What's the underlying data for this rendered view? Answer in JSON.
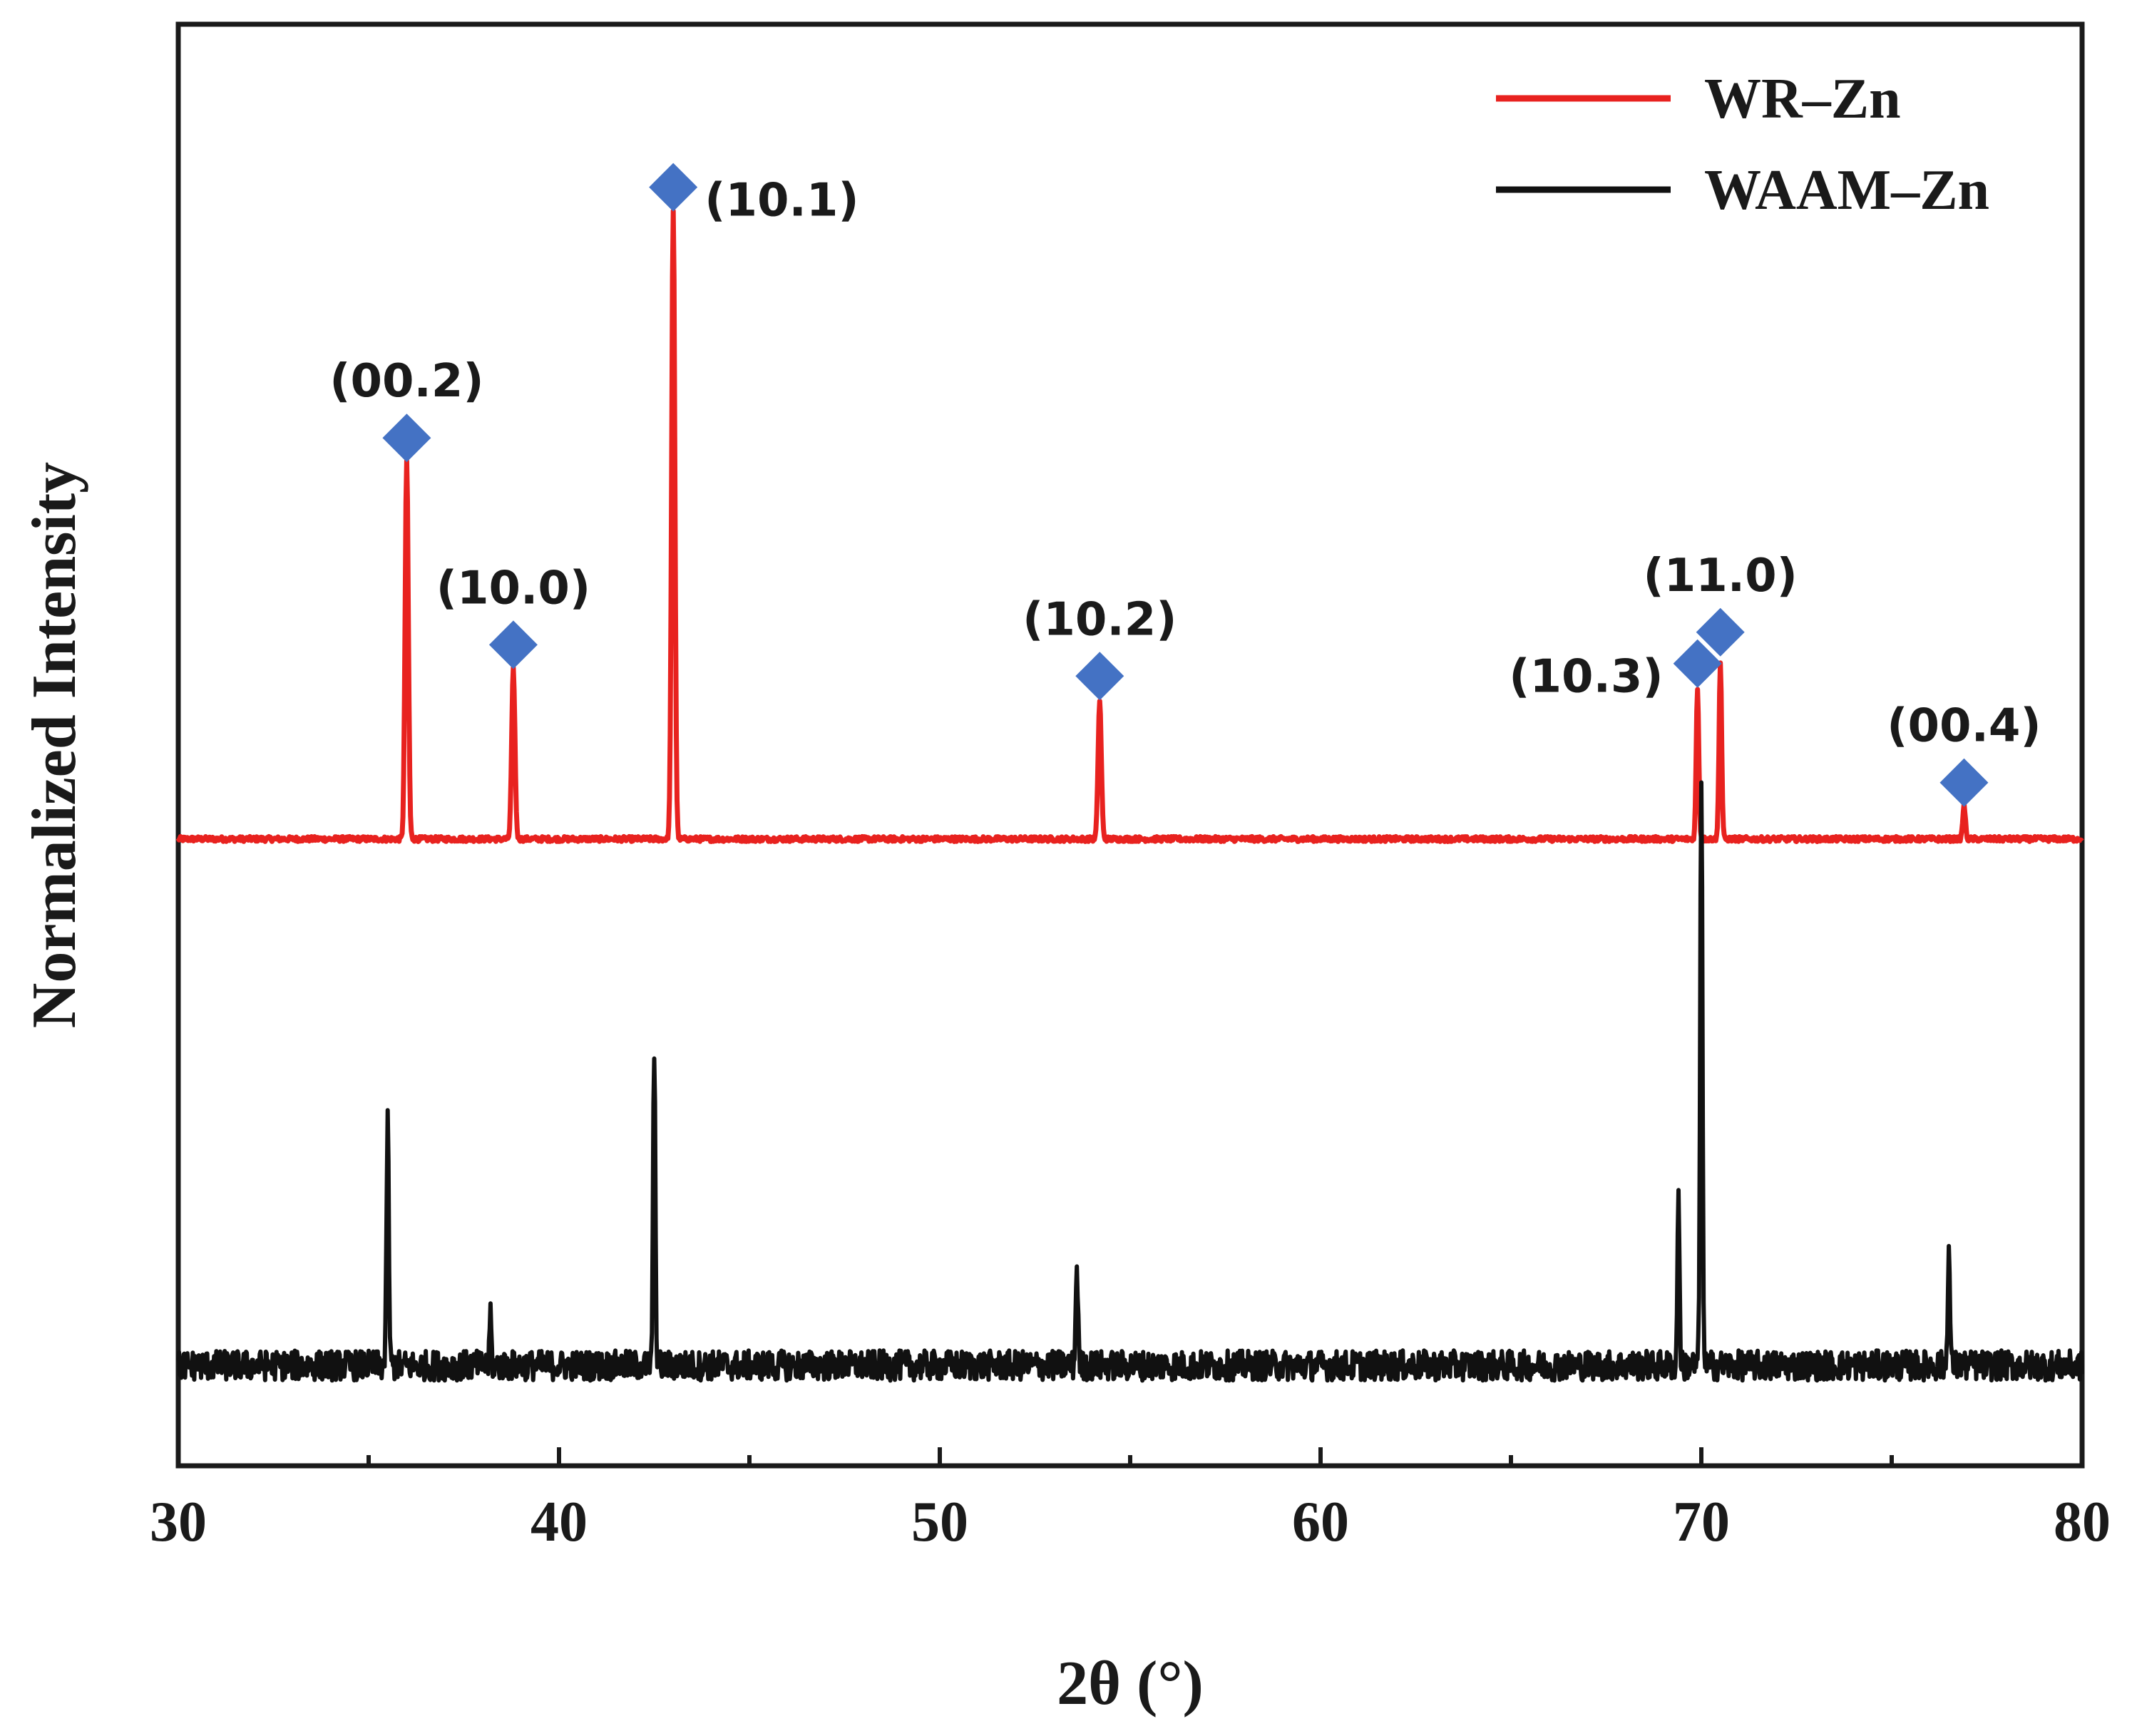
{
  "chart_data": {
    "type": "line",
    "title": "",
    "xlabel": "2θ (°)",
    "ylabel": "Normalized Intensity",
    "xlim": [
      30,
      80
    ],
    "ylim": [
      0,
      1.15
    ],
    "x_ticks": [
      30,
      40,
      50,
      60,
      70,
      80
    ],
    "x_ticks_minor": [
      35,
      45,
      55,
      65,
      75
    ],
    "y_ticks": [],
    "grid": false,
    "legend": {
      "position": "top-right"
    },
    "colors": {
      "marker": "#4472c4",
      "axis": "#1a1a1a"
    },
    "series": [
      {
        "name": "WR–Zn",
        "color": "#e8221f",
        "baseline": 0.5,
        "noise": 0.002,
        "peaks": [
          {
            "x": 36.0,
            "height": 0.3,
            "width": 0.1
          },
          {
            "x": 38.8,
            "height": 0.135,
            "width": 0.1
          },
          {
            "x": 43.0,
            "height": 0.5,
            "width": 0.1
          },
          {
            "x": 54.2,
            "height": 0.11,
            "width": 0.1
          },
          {
            "x": 69.9,
            "height": 0.12,
            "width": 0.08
          },
          {
            "x": 70.5,
            "height": 0.14,
            "width": 0.08
          },
          {
            "x": 76.9,
            "height": 0.027,
            "width": 0.08
          }
        ]
      },
      {
        "name": "WAAM–Zn",
        "color": "#111111",
        "baseline": 0.08,
        "noise": 0.012,
        "peaks": [
          {
            "x": 35.5,
            "height": 0.195,
            "width": 0.07
          },
          {
            "x": 38.2,
            "height": 0.045,
            "width": 0.05
          },
          {
            "x": 42.5,
            "height": 0.25,
            "width": 0.07
          },
          {
            "x": 53.6,
            "height": 0.08,
            "width": 0.07
          },
          {
            "x": 69.4,
            "height": 0.145,
            "width": 0.06
          },
          {
            "x": 70.0,
            "height": 0.465,
            "width": 0.07
          },
          {
            "x": 76.5,
            "height": 0.09,
            "width": 0.07
          }
        ]
      }
    ],
    "annotations": [
      {
        "label": "(00.2)",
        "x": 36.0,
        "y": 0.82,
        "anchor": "above"
      },
      {
        "label": "(10.0)",
        "x": 38.8,
        "y": 0.655,
        "anchor": "above"
      },
      {
        "label": "(10.1)",
        "x": 43.0,
        "y": 1.02,
        "anchor": "right"
      },
      {
        "label": "(10.2)",
        "x": 54.2,
        "y": 0.63,
        "anchor": "above"
      },
      {
        "label": "(10.3)",
        "x": 69.9,
        "y": 0.64,
        "anchor": "left"
      },
      {
        "label": "(11.0)",
        "x": 70.5,
        "y": 0.665,
        "anchor": "above"
      },
      {
        "label": "(00.4)",
        "x": 76.9,
        "y": 0.545,
        "anchor": "above"
      }
    ]
  }
}
